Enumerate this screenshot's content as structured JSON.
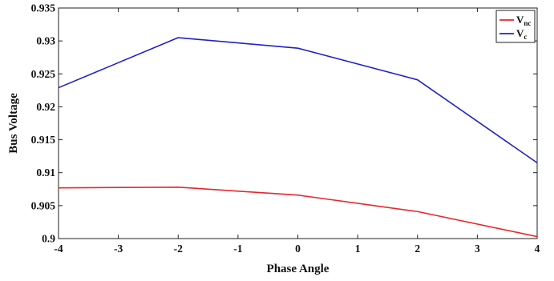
{
  "chart_data": {
    "type": "line",
    "title": "",
    "xlabel": "Phase Angle",
    "ylabel": "Bus Voltage",
    "xlim": [
      -4,
      4
    ],
    "ylim": [
      0.9,
      0.935
    ],
    "xticks": [
      -4,
      -3,
      -2,
      -1,
      0,
      1,
      2,
      3,
      4
    ],
    "xtick_labels": [
      "-4",
      "-3",
      "-2",
      "-1",
      "0",
      "1",
      "2",
      "3",
      "4"
    ],
    "yticks": [
      0.9,
      0.905,
      0.91,
      0.915,
      0.92,
      0.925,
      0.93,
      0.935
    ],
    "ytick_labels": [
      "0.9",
      "0.905",
      "0.91",
      "0.915",
      "0.92",
      "0.925",
      "0.93",
      "0.935"
    ],
    "grid": false,
    "legend_position": "top-right",
    "x": [
      -4,
      -2,
      0,
      2,
      4
    ],
    "series": [
      {
        "name": "V_nc",
        "label_main": "V",
        "label_sub": "nc",
        "color": "#e8262a",
        "values": [
          0.9077,
          0.9078,
          0.9066,
          0.9041,
          0.9003
        ]
      },
      {
        "name": "V_c",
        "label_main": "V",
        "label_sub": "c",
        "color": "#1f22c8",
        "values": [
          0.9229,
          0.9305,
          0.9289,
          0.9241,
          0.9115
        ]
      }
    ]
  }
}
